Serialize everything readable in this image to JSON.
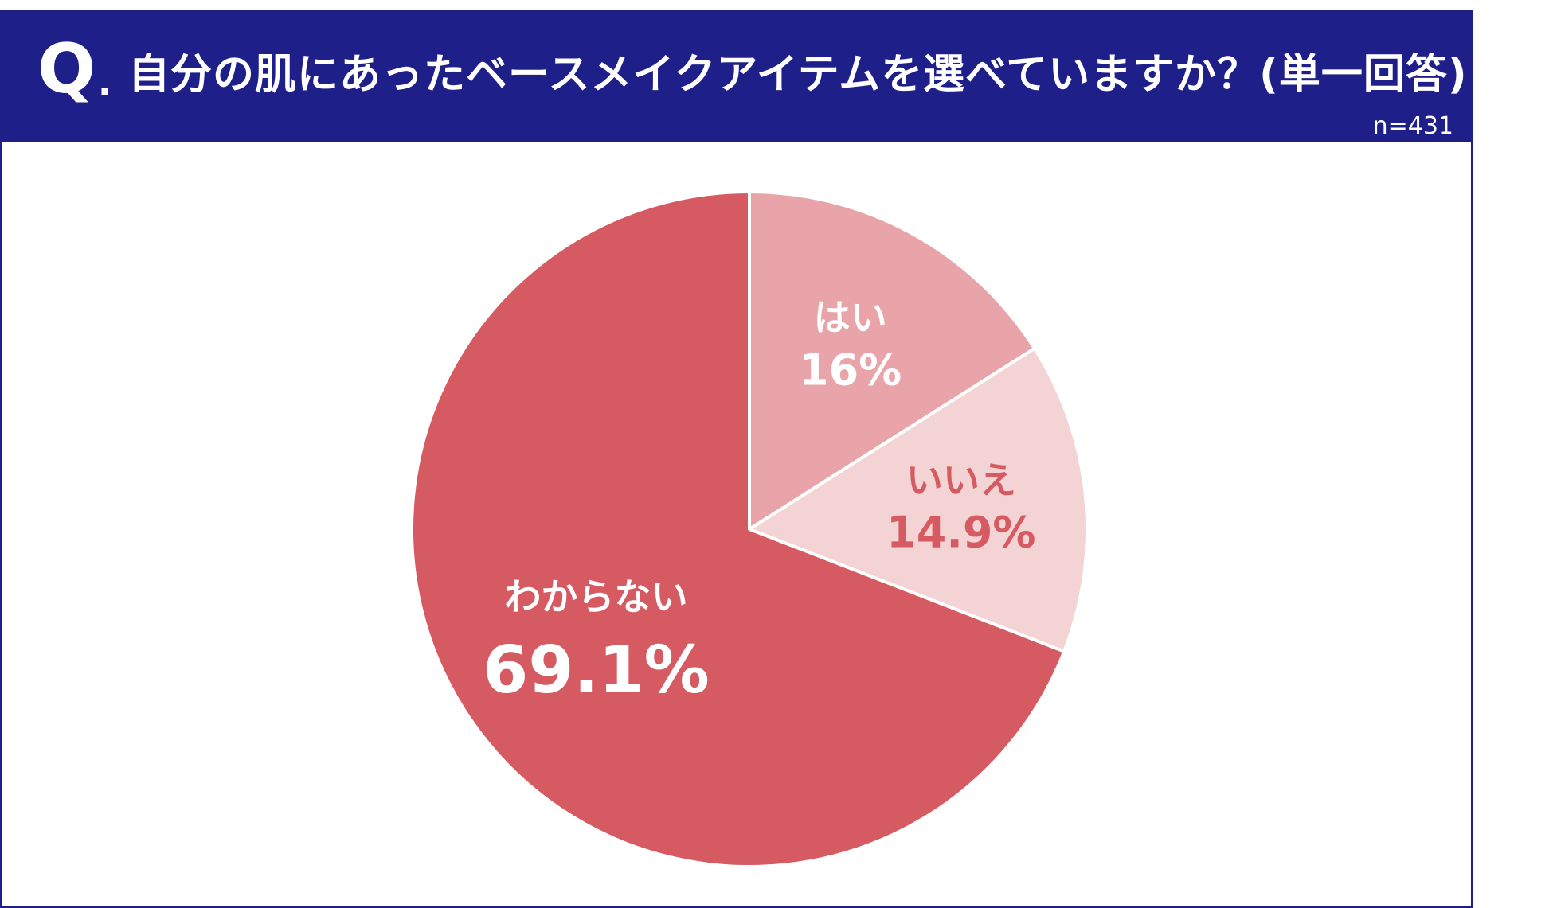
{
  "header": {
    "q_mark": "Q",
    "q_dot": ".",
    "question": "自分の肌にあったベースメイクアイテムを選べていますか？(単一回答)",
    "sample_size": "n=431"
  },
  "colors": {
    "header_bg": "#1e1f88",
    "header_text": "#ffffff",
    "slice_yes": "#e8a4a8",
    "slice_no": "#f4d3d4",
    "slice_unknown": "#d65a62",
    "separator": "#ffffff",
    "label_light": "#ffffff",
    "label_dark": "#d65a62"
  },
  "chart_data": {
    "type": "pie",
    "start": "12 o'clock",
    "direction": "clockwise",
    "slices": [
      {
        "label": "はい",
        "value": 16,
        "value_label": "16%"
      },
      {
        "label": "いいえ",
        "value": 14.9,
        "value_label": "14.9%"
      },
      {
        "label": "わからない",
        "value": 69.1,
        "value_label": "69.1%"
      }
    ]
  }
}
